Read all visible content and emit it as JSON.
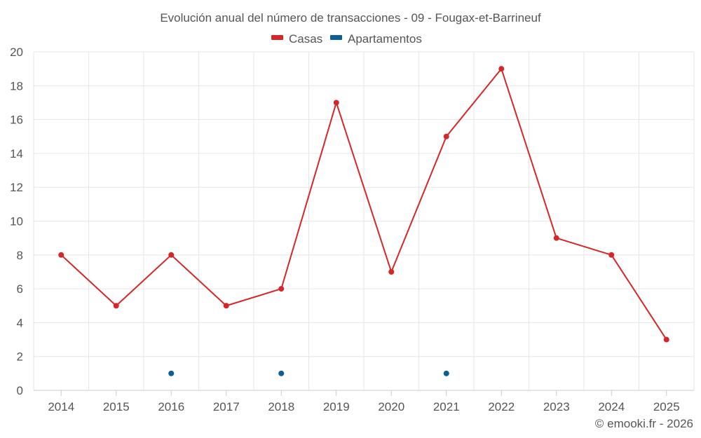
{
  "chart_data": {
    "type": "line",
    "title": "Evolución anual del número de transacciones - 09 - Fougax-et-Barrineuf",
    "categories": [
      "2014",
      "2015",
      "2016",
      "2017",
      "2018",
      "2019",
      "2020",
      "2021",
      "2022",
      "2023",
      "2024",
      "2025"
    ],
    "series": [
      {
        "name": "Casas",
        "color": "#d62728",
        "values": [
          8,
          5,
          8,
          5,
          6,
          17,
          7,
          15,
          19,
          9,
          8,
          3
        ]
      },
      {
        "name": "Apartamentos",
        "color": "#0b5e96",
        "values": [
          null,
          null,
          1,
          null,
          1,
          null,
          null,
          1,
          null,
          null,
          null,
          null
        ]
      }
    ],
    "ylim": [
      0,
      20
    ],
    "yticks": [
      0,
      2,
      4,
      6,
      8,
      10,
      12,
      14,
      16,
      18,
      20
    ],
    "grid": true,
    "legend_position": "top-center"
  },
  "credit": "© emooki.fr - 2026"
}
